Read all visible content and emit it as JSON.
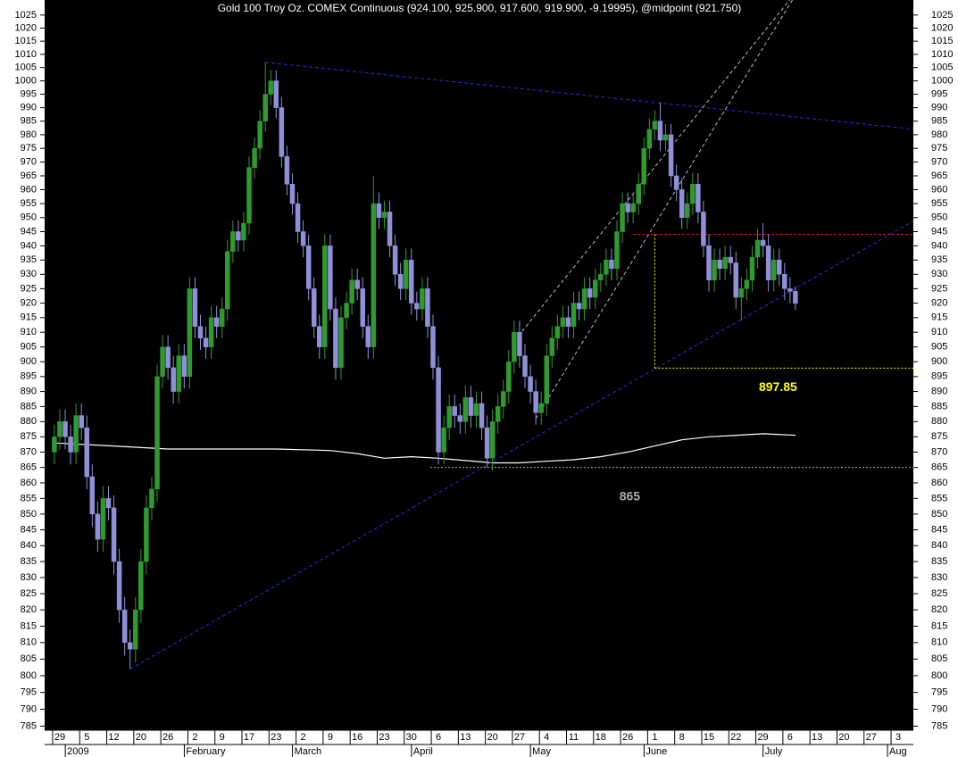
{
  "chart_data": {
    "type": "candlestick",
    "title": "Gold 100 Troy Oz. COMEX Continuous (924.100, 925.900, 917.600, 919.900, -9.19995), @midpoint (921.750)",
    "log_scale": true,
    "up_color": "#2f9a2f",
    "down_color": "#9090d8",
    "x": [
      -1,
      0,
      1,
      2,
      3,
      4,
      5,
      6,
      7,
      8,
      9,
      10,
      11,
      12,
      13,
      14,
      15,
      16,
      17,
      18,
      19,
      20,
      21,
      22,
      23,
      24,
      25,
      26,
      27,
      28,
      29,
      30,
      31,
      32,
      33,
      34,
      35,
      36,
      37,
      38,
      39,
      40,
      41,
      42,
      43,
      44,
      45,
      46,
      47,
      48,
      49,
      50,
      51,
      52,
      53,
      54,
      55,
      56,
      57,
      58,
      59,
      60,
      61,
      62,
      63,
      64,
      65,
      66,
      67,
      68,
      69,
      70,
      71,
      72,
      73,
      74,
      75,
      76,
      77,
      78,
      79,
      80,
      81,
      82,
      83,
      84,
      85,
      86,
      87,
      88,
      89,
      90,
      91,
      92,
      93,
      94,
      95,
      96,
      97,
      98,
      99,
      100,
      101,
      102,
      103,
      104,
      105,
      106,
      107,
      108,
      109,
      110,
      111,
      112,
      113,
      114,
      115,
      116,
      117,
      118,
      119,
      120,
      121,
      122,
      123,
      124,
      125,
      126,
      127,
      128,
      129,
      130,
      131,
      132,
      133,
      134,
      135,
      136
    ],
    "open": [
      870,
      875,
      880,
      875,
      870,
      882,
      878,
      862,
      850,
      842,
      855,
      852,
      835,
      820,
      810,
      808,
      820,
      835,
      852,
      858,
      895,
      905,
      898,
      890,
      902,
      895,
      925,
      912,
      908,
      905,
      915,
      912,
      918,
      938,
      945,
      942,
      948,
      968,
      975,
      985,
      995,
      1000,
      990,
      972,
      962,
      955,
      945,
      940,
      925,
      912,
      905,
      940,
      918,
      898,
      915,
      920,
      928,
      925,
      912,
      905,
      955,
      950,
      952,
      940,
      930,
      925,
      935,
      920,
      918,
      925,
      912,
      898,
      870,
      878,
      885,
      882,
      880,
      888,
      882,
      886,
      878,
      868,
      880,
      885,
      890,
      900,
      910,
      902,
      895,
      890,
      883,
      886,
      902,
      908,
      912,
      915,
      912,
      920,
      918,
      925,
      922,
      928,
      930,
      935,
      932,
      945,
      955,
      952,
      955,
      962,
      975,
      982,
      985,
      978,
      980,
      965,
      960,
      950,
      955,
      962,
      952,
      940,
      928,
      935,
      932,
      936,
      934,
      922,
      925,
      928,
      936,
      942,
      940,
      928,
      935,
      930,
      925,
      924.1
    ],
    "high": [
      879,
      884,
      884,
      879,
      886,
      886,
      882,
      866,
      854,
      859,
      859,
      856,
      839,
      824,
      814,
      824,
      839,
      856,
      862,
      899,
      909,
      909,
      902,
      906,
      906,
      929,
      929,
      916,
      912,
      919,
      919,
      922,
      942,
      949,
      949,
      952,
      972,
      979,
      989,
      1007,
      1004,
      1004,
      994,
      976,
      966,
      959,
      949,
      944,
      929,
      916,
      944,
      944,
      922,
      919,
      924,
      932,
      932,
      929,
      916,
      965,
      959,
      956,
      956,
      944,
      934,
      939,
      939,
      924,
      929,
      929,
      916,
      902,
      882,
      889,
      889,
      886,
      892,
      892,
      890,
      890,
      882,
      884,
      889,
      894,
      904,
      914,
      914,
      906,
      899,
      894,
      890,
      906,
      912,
      916,
      919,
      919,
      924,
      924,
      929,
      929,
      932,
      934,
      939,
      939,
      949,
      959,
      959,
      959,
      966,
      979,
      986,
      989,
      992,
      984,
      984,
      969,
      964,
      959,
      966,
      966,
      956,
      944,
      939,
      939,
      940,
      940,
      938,
      929,
      932,
      940,
      946,
      948,
      944,
      939,
      939,
      934,
      929,
      925.9
    ],
    "low": [
      866,
      871,
      871,
      866,
      866,
      874,
      858,
      846,
      838,
      838,
      848,
      831,
      816,
      806,
      802,
      804,
      816,
      831,
      848,
      854,
      891,
      894,
      886,
      886,
      891,
      891,
      908,
      904,
      901,
      901,
      908,
      908,
      914,
      934,
      938,
      938,
      944,
      964,
      971,
      981,
      991,
      986,
      968,
      958,
      951,
      941,
      936,
      921,
      908,
      901,
      901,
      914,
      894,
      894,
      911,
      916,
      921,
      908,
      901,
      901,
      946,
      946,
      936,
      926,
      921,
      921,
      916,
      914,
      914,
      908,
      894,
      866,
      866,
      874,
      878,
      876,
      876,
      878,
      878,
      874,
      865,
      864,
      876,
      881,
      886,
      896,
      898,
      891,
      886,
      879,
      879,
      882,
      898,
      904,
      908,
      908,
      908,
      914,
      914,
      918,
      918,
      924,
      926,
      928,
      928,
      941,
      948,
      948,
      951,
      958,
      971,
      978,
      974,
      974,
      961,
      956,
      946,
      946,
      951,
      948,
      936,
      924,
      924,
      928,
      928,
      930,
      918,
      914,
      921,
      924,
      932,
      936,
      924,
      924,
      926,
      921,
      920,
      917.6
    ],
    "close": [
      875,
      880,
      875,
      870,
      882,
      878,
      862,
      850,
      842,
      855,
      852,
      835,
      820,
      810,
      808,
      820,
      835,
      852,
      858,
      895,
      905,
      898,
      890,
      902,
      895,
      925,
      912,
      908,
      905,
      915,
      912,
      918,
      938,
      945,
      942,
      948,
      968,
      975,
      985,
      995,
      1000,
      990,
      972,
      962,
      955,
      945,
      940,
      925,
      912,
      905,
      940,
      918,
      898,
      915,
      920,
      928,
      925,
      912,
      905,
      955,
      950,
      952,
      940,
      930,
      925,
      935,
      920,
      918,
      925,
      912,
      898,
      870,
      878,
      885,
      882,
      880,
      888,
      882,
      886,
      878,
      868,
      880,
      885,
      890,
      900,
      910,
      902,
      895,
      890,
      883,
      886,
      902,
      908,
      912,
      915,
      912,
      920,
      918,
      925,
      922,
      928,
      930,
      935,
      932,
      945,
      955,
      952,
      955,
      962,
      975,
      982,
      985,
      978,
      980,
      965,
      960,
      950,
      955,
      962,
      952,
      940,
      928,
      935,
      932,
      936,
      934,
      922,
      925,
      928,
      936,
      942,
      940,
      928,
      935,
      930,
      925,
      924.1,
      919.9
    ],
    "moving_average": {
      "color": "#ffffff",
      "x": [
        -1,
        10,
        20,
        30,
        40,
        50,
        55,
        60,
        65,
        70,
        80,
        85,
        90,
        95,
        100,
        105,
        110,
        115,
        120,
        125,
        130,
        136
      ],
      "values": [
        873,
        872,
        871,
        871,
        871,
        870.5,
        869.5,
        868,
        868.5,
        868,
        866.5,
        866.5,
        867,
        867.5,
        868.5,
        870,
        872,
        874,
        875,
        875.5,
        876,
        875.5
      ]
    },
    "trendlines": [
      {
        "color": "#2a2ad8",
        "x": [
          13,
          158
        ],
        "values": [
          802,
          949
        ]
      },
      {
        "color": "#2a2ad8",
        "x": [
          38,
          158
        ],
        "values": [
          1007,
          982
        ]
      },
      {
        "color": "#bbbbbb",
        "x": [
          84,
          135
        ],
        "values": [
          907,
          1031
        ]
      },
      {
        "color": "#bbbbbb",
        "x": [
          88,
          135.5
        ],
        "values": [
          881,
          1031
        ]
      }
    ],
    "reference_lines": [
      {
        "color": "#dd2222",
        "from": 106,
        "value": 944
      }
    ],
    "annotations": [
      {
        "color": "#ffff00",
        "from": 110,
        "value": 897.85
      },
      {
        "color": "#aaaaaa",
        "from": 68.5,
        "value": 865
      }
    ],
    "xlim": [
      -2.8,
      157.8
    ],
    "ylim": [
      783.8,
      1030.8
    ],
    "yticks": [
      785,
      790,
      795,
      800,
      805,
      810,
      815,
      820,
      825,
      830,
      835,
      840,
      845,
      850,
      855,
      860,
      865,
      870,
      875,
      880,
      885,
      890,
      895,
      900,
      905,
      910,
      915,
      920,
      925,
      930,
      935,
      940,
      945,
      950,
      955,
      960,
      965,
      970,
      975,
      980,
      985,
      990,
      995,
      1000,
      1005,
      1010,
      1015,
      1020,
      1025
    ],
    "xticks": [
      {
        "value": 0,
        "label": "29"
      },
      {
        "value": 5,
        "label": "5"
      },
      {
        "value": 10,
        "label": "12"
      },
      {
        "value": 15,
        "label": "20"
      },
      {
        "value": 20,
        "label": "26"
      },
      {
        "value": 25,
        "label": "2"
      },
      {
        "value": 30,
        "label": "9"
      },
      {
        "value": 35,
        "label": "17"
      },
      {
        "value": 40,
        "label": "23"
      },
      {
        "value": 45,
        "label": "2"
      },
      {
        "value": 50,
        "label": "9"
      },
      {
        "value": 55,
        "label": "16"
      },
      {
        "value": 60,
        "label": "23"
      },
      {
        "value": 65,
        "label": "30"
      },
      {
        "value": 70,
        "label": "6"
      },
      {
        "value": 75,
        "label": "13"
      },
      {
        "value": 80,
        "label": "20"
      },
      {
        "value": 85,
        "label": "27"
      },
      {
        "value": 90,
        "label": "4"
      },
      {
        "value": 95,
        "label": "11"
      },
      {
        "value": 100,
        "label": "18"
      },
      {
        "value": 105,
        "label": "26"
      },
      {
        "value": 110,
        "label": "1"
      },
      {
        "value": 115,
        "label": "8"
      },
      {
        "value": 120,
        "label": "15"
      },
      {
        "value": 125,
        "label": "22"
      },
      {
        "value": 130,
        "label": "29"
      },
      {
        "value": 135,
        "label": "6"
      },
      {
        "value": 140,
        "label": "13"
      },
      {
        "value": 145,
        "label": "20"
      },
      {
        "value": 150,
        "label": "27"
      },
      {
        "value": 155,
        "label": "3"
      }
    ],
    "month_ticks": [
      {
        "value": 3,
        "label": "2009"
      },
      {
        "value": 25,
        "label": "February"
      },
      {
        "value": 45,
        "label": "March"
      },
      {
        "value": 67,
        "label": "April"
      },
      {
        "value": 89,
        "label": "May"
      },
      {
        "value": 110,
        "label": "June"
      },
      {
        "value": 132,
        "label": "July"
      },
      {
        "value": 155,
        "label": "Aug"
      }
    ]
  }
}
